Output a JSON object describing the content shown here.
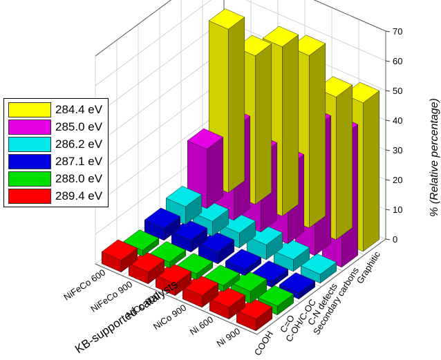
{
  "chart_data": {
    "type": "bar",
    "title": "",
    "xlabel": "KB-supported catalysts",
    "ylabel": "",
    "zlabel": "% (Relative percentage)",
    "zlim": [
      0,
      70
    ],
    "z_ticks": [
      "0",
      "10",
      "20",
      "30",
      "40",
      "50",
      "60",
      "70"
    ],
    "grid": true,
    "legend_position": "left",
    "categories": [
      "Ni 900",
      "Ni 600",
      "NiCo 900",
      "NiCo 600",
      "NiFeCo 900",
      "NiFeCo 600"
    ],
    "depth_categories": [
      "COOH",
      "C=O",
      "C-OH/C-OC",
      "C-N defects",
      "Secondary carbons",
      "Graphitic"
    ],
    "series": [
      {
        "name": "289.4 eV",
        "color": "#ff0000",
        "values": [
          4,
          4,
          4,
          4,
          4,
          4
        ]
      },
      {
        "name": "288.0 eV",
        "color": "#00e000",
        "values": [
          3,
          4,
          2,
          2,
          2,
          2
        ]
      },
      {
        "name": "287.1 eV",
        "color": "#0000e0",
        "values": [
          2,
          2,
          2,
          4,
          4,
          4
        ]
      },
      {
        "name": "286.2 eV",
        "color": "#00e8e8",
        "values": [
          3,
          4,
          5,
          5,
          5,
          6
        ]
      },
      {
        "name": "285.0 eV",
        "color": "#e600e6",
        "values": [
          44,
          43,
          26,
          26,
          31,
          20
        ]
      },
      {
        "name": "284.4 eV",
        "color": "#ffff00",
        "values": [
          50,
          48,
          58,
          57,
          50,
          55
        ]
      }
    ]
  }
}
